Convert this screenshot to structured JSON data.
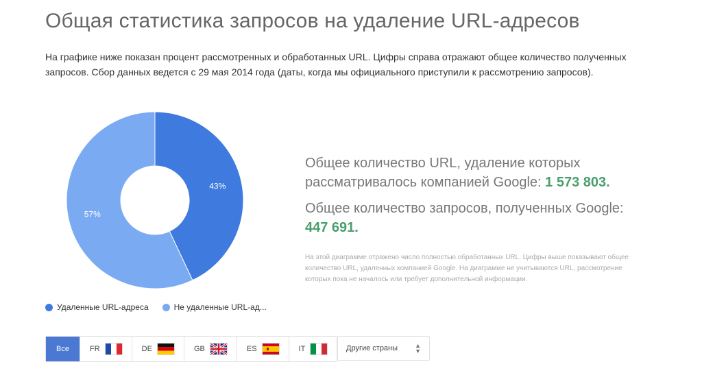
{
  "title": "Общая статистика запросов на удаление URL-адресов",
  "intro": "На графике ниже показан процент рассмотренных и обработанных URL. Цифры справа отражают общее количество полученных запросов. Сбор данных ведется с 29 мая 2014 года (даты, когда мы официального приступили к рассмотрению запросов).",
  "chart_data": {
    "type": "pie",
    "donut": true,
    "categories": [
      "Удаленные URL-адреса",
      "Не удаленные URL-ад..."
    ],
    "values": [
      43,
      57
    ],
    "labels": [
      "43%",
      "57%"
    ],
    "colors": [
      "#3f7ade",
      "#7aaaf1"
    ],
    "legend": "bottom-left"
  },
  "stats": {
    "urls_text": "Общее количество URL, удаление которых рассматривалось компанией Google:",
    "urls_value": "1 573 803",
    "requests_text": "Общее количество запросов, полученных Google:",
    "requests_value": "447 691",
    "period": ".",
    "note": "На этой диаграмме отражено число полностью обработанных URL. Цифры выше показывают общее количество URL, удаленных компанией Google. На диаграмме не учитываются URL, рассмотрение которых пока не началось или требует дополнительной информации."
  },
  "countries": {
    "all": "Все",
    "items": [
      {
        "code": "FR",
        "flag": "fr-flag-icon"
      },
      {
        "code": "DE",
        "flag": "de-flag-icon"
      },
      {
        "code": "GB",
        "flag": "gb-flag-icon"
      },
      {
        "code": "ES",
        "flag": "es-flag-icon"
      },
      {
        "code": "IT",
        "flag": "it-flag-icon"
      }
    ],
    "other": "Другие страны"
  },
  "colors": {
    "accent": "#4a78d2",
    "number": "#4a9e6b"
  }
}
